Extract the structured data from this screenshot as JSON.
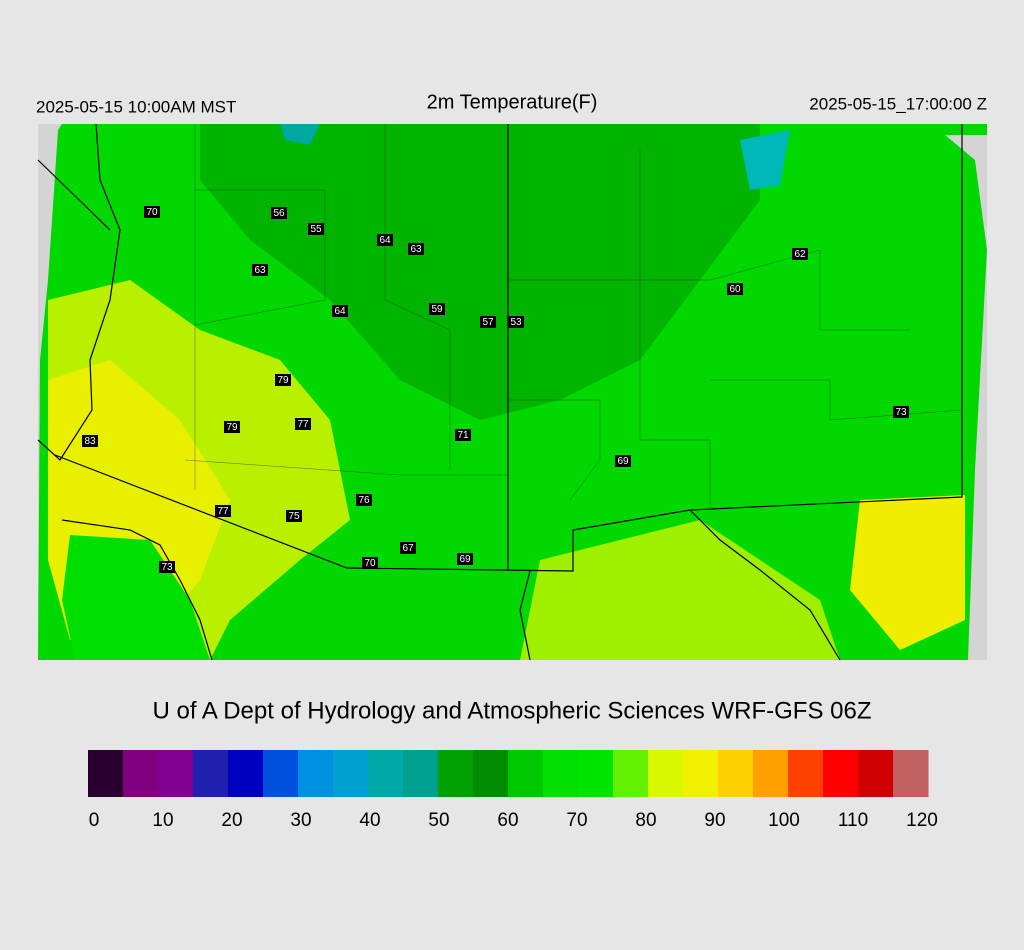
{
  "header": {
    "title": "2m Temperature(F)",
    "local_time": "2025-05-15 10:00AM MST",
    "valid_time": "2025-05-15_17:00:00 Z"
  },
  "stations": [
    "70",
    "56",
    "55",
    "64",
    "63",
    "63",
    "64",
    "59",
    "57",
    "53",
    "62",
    "60",
    "79",
    "79",
    "77",
    "71",
    "83",
    "69",
    "73",
    "76",
    "77",
    "75",
    "67",
    "69",
    "70",
    "73"
  ],
  "credit": "U of A Dept of Hydrology and Atmospheric Sciences WRF-GFS 06Z",
  "colorbar": {
    "lim": [
      0,
      120
    ],
    "ticks": [
      0,
      10,
      20,
      30,
      40,
      50,
      60,
      70,
      80,
      90,
      100,
      110,
      120
    ],
    "colors": [
      "#2a0030",
      "#800080",
      "#800090",
      "#2020b0",
      "#0000c0",
      "#0050e0",
      "#0090e0",
      "#00a0d0",
      "#00a8a8",
      "#00a090",
      "#00a000",
      "#008c00",
      "#00c800",
      "#00e000",
      "#00e400",
      "#60f000",
      "#d8f800",
      "#f0f000",
      "#ffd000",
      "#ffa000",
      "#ff4000",
      "#ff0000",
      "#d00000",
      "#c06060"
    ]
  }
}
